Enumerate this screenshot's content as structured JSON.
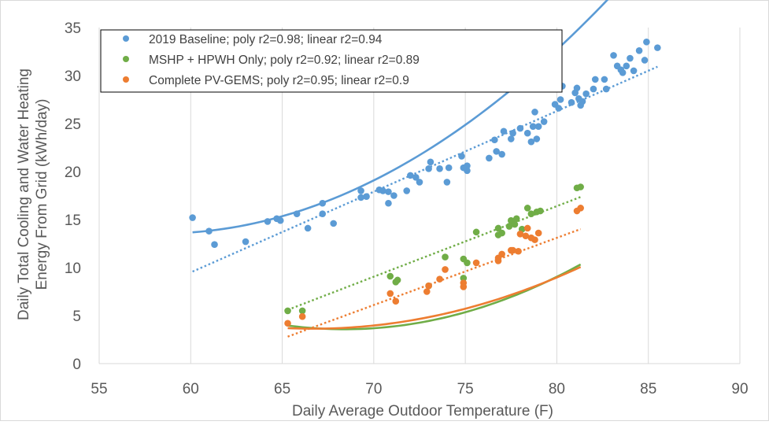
{
  "chart_data": {
    "type": "scatter",
    "xlabel": "Daily Average Outdoor Temperature (F)",
    "ylabel_lines": [
      "Daily Total Cooling and Water Heating",
      "Energy From Grid (kWh/day)"
    ],
    "xlim": [
      55,
      90
    ],
    "ylim": [
      0,
      35
    ],
    "xticks": [
      55,
      60,
      65,
      70,
      75,
      80,
      85,
      90
    ],
    "yticks": [
      0,
      5,
      10,
      15,
      20,
      25,
      30,
      35
    ],
    "grid": "vertical",
    "legend_position": "top-left",
    "series": [
      {
        "name": "2019 Baseline; poly r2=0.98; linear r2=0.94",
        "color": "#5b9bd5",
        "points": [
          [
            60.1,
            15.2
          ],
          [
            61.0,
            13.8
          ],
          [
            61.3,
            12.4
          ],
          [
            63.0,
            12.7
          ],
          [
            64.2,
            14.8
          ],
          [
            64.7,
            15.1
          ],
          [
            64.9,
            14.9
          ],
          [
            65.8,
            15.6
          ],
          [
            66.4,
            14.1
          ],
          [
            67.2,
            16.7
          ],
          [
            67.2,
            15.6
          ],
          [
            67.8,
            14.6
          ],
          [
            69.3,
            18.0
          ],
          [
            69.3,
            17.3
          ],
          [
            69.6,
            17.4
          ],
          [
            70.3,
            18.1
          ],
          [
            70.5,
            18.0
          ],
          [
            70.8,
            17.9
          ],
          [
            70.8,
            16.7
          ],
          [
            71.1,
            17.5
          ],
          [
            71.8,
            18.0
          ],
          [
            72.0,
            19.6
          ],
          [
            72.3,
            19.4
          ],
          [
            72.5,
            18.9
          ],
          [
            73.0,
            20.3
          ],
          [
            73.1,
            21.0
          ],
          [
            73.6,
            20.3
          ],
          [
            74.0,
            18.9
          ],
          [
            74.1,
            20.4
          ],
          [
            74.8,
            21.6
          ],
          [
            74.9,
            20.4
          ],
          [
            75.1,
            20.1
          ],
          [
            75.1,
            20.6
          ],
          [
            76.3,
            21.4
          ],
          [
            76.6,
            23.3
          ],
          [
            76.7,
            22.1
          ],
          [
            77.0,
            21.8
          ],
          [
            77.1,
            24.2
          ],
          [
            77.5,
            23.4
          ],
          [
            77.6,
            24.0
          ],
          [
            78.0,
            24.5
          ],
          [
            78.4,
            24.0
          ],
          [
            78.6,
            23.1
          ],
          [
            78.7,
            24.7
          ],
          [
            78.8,
            26.2
          ],
          [
            78.9,
            23.4
          ],
          [
            79.0,
            24.7
          ],
          [
            79.3,
            25.2
          ],
          [
            79.9,
            27.0
          ],
          [
            80.1,
            26.6
          ],
          [
            80.2,
            27.5
          ],
          [
            80.3,
            28.9
          ],
          [
            80.8,
            27.2
          ],
          [
            81.0,
            28.2
          ],
          [
            81.1,
            28.7
          ],
          [
            81.2,
            27.6
          ],
          [
            81.3,
            26.9
          ],
          [
            81.4,
            27.3
          ],
          [
            81.6,
            28.1
          ],
          [
            82.0,
            28.6
          ],
          [
            82.1,
            29.6
          ],
          [
            82.6,
            29.6
          ],
          [
            82.7,
            28.6
          ],
          [
            83.1,
            32.1
          ],
          [
            83.3,
            31.0
          ],
          [
            83.5,
            30.6
          ],
          [
            83.6,
            30.3
          ],
          [
            83.8,
            31.0
          ],
          [
            84.0,
            31.8
          ],
          [
            84.2,
            30.5
          ],
          [
            84.5,
            32.6
          ],
          [
            84.8,
            31.6
          ],
          [
            84.9,
            33.5
          ],
          [
            85.5,
            32.9
          ]
        ],
        "poly": [
          0.0409,
          -4.7747,
          152.9
        ],
        "linear": [
          0.84,
          -40.9
        ]
      },
      {
        "name": "MSHP + HPWH Only; poly r2=0.92; linear r2=0.89",
        "color": "#70ad47",
        "points": [
          [
            65.3,
            5.5
          ],
          [
            66.1,
            5.5
          ],
          [
            70.9,
            9.1
          ],
          [
            71.2,
            8.5
          ],
          [
            71.3,
            8.7
          ],
          [
            73.0,
            8.1
          ],
          [
            73.9,
            11.1
          ],
          [
            74.9,
            10.9
          ],
          [
            74.9,
            8.9
          ],
          [
            75.1,
            10.5
          ],
          [
            75.6,
            13.7
          ],
          [
            76.8,
            13.4
          ],
          [
            76.8,
            14.1
          ],
          [
            77.0,
            13.6
          ],
          [
            77.4,
            14.3
          ],
          [
            77.5,
            14.9
          ],
          [
            77.7,
            14.5
          ],
          [
            77.8,
            15.1
          ],
          [
            78.1,
            14.0
          ],
          [
            78.4,
            16.2
          ],
          [
            78.6,
            15.6
          ],
          [
            78.9,
            15.8
          ],
          [
            79.1,
            15.9
          ],
          [
            81.1,
            18.3
          ],
          [
            81.3,
            18.4
          ]
        ],
        "poly": [
          0.0405,
          -5.5395,
          193.0
        ],
        "linear": [
          0.735,
          -42.4
        ]
      },
      {
        "name": "Complete PV-GEMS; poly r2=0.95; linear r2=0.9",
        "color": "#ed7d31",
        "points": [
          [
            65.3,
            4.2
          ],
          [
            66.1,
            4.9
          ],
          [
            70.9,
            7.3
          ],
          [
            71.2,
            6.5
          ],
          [
            72.9,
            7.5
          ],
          [
            73.0,
            8.1
          ],
          [
            73.6,
            8.8
          ],
          [
            73.9,
            9.8
          ],
          [
            74.9,
            8.4
          ],
          [
            74.9,
            8.0
          ],
          [
            75.6,
            10.5
          ],
          [
            76.8,
            11.0
          ],
          [
            76.8,
            10.7
          ],
          [
            77.0,
            11.4
          ],
          [
            77.5,
            11.8
          ],
          [
            77.6,
            11.8
          ],
          [
            77.9,
            11.7
          ],
          [
            78.0,
            13.5
          ],
          [
            78.3,
            13.3
          ],
          [
            78.4,
            14.1
          ],
          [
            78.6,
            13.1
          ],
          [
            78.8,
            12.9
          ],
          [
            79.0,
            13.6
          ],
          [
            81.1,
            15.9
          ],
          [
            81.3,
            16.2
          ]
        ],
        "poly": [
          0.0301,
          -4.0146,
          137.5
        ],
        "linear": [
          0.7,
          -42.9
        ]
      }
    ]
  }
}
